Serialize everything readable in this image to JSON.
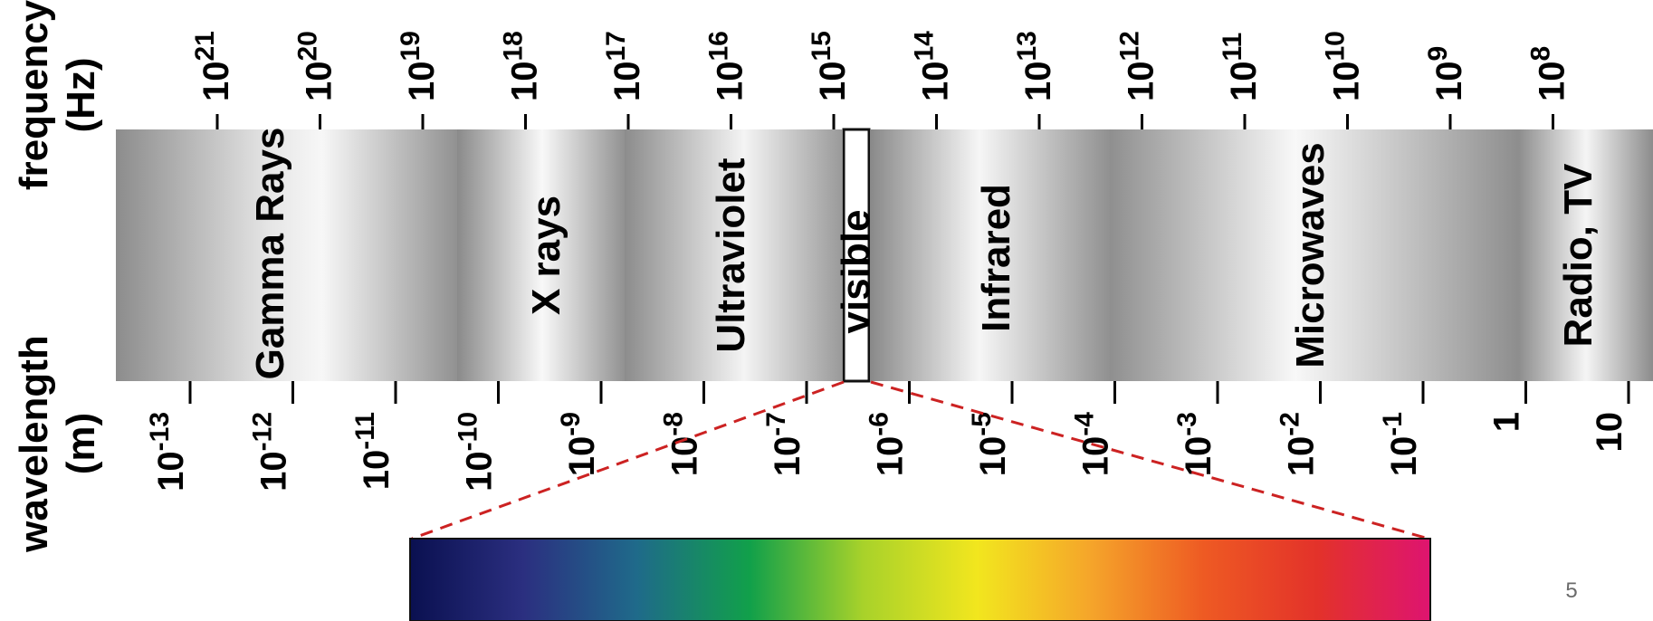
{
  "frequency_axis": {
    "title": "frequency",
    "unit": "(Hz)",
    "base": "10",
    "exponents": [
      "21",
      "20",
      "19",
      "18",
      "17",
      "16",
      "15",
      "14",
      "13",
      "12",
      "11",
      "10",
      "9",
      "8"
    ]
  },
  "wavelength_axis": {
    "title": "wavelength",
    "unit": "(m)",
    "labels": [
      {
        "base": "10",
        "exp": "-13"
      },
      {
        "base": "10",
        "exp": "-12"
      },
      {
        "base": "10",
        "exp": "-11"
      },
      {
        "base": "10",
        "exp": "-10"
      },
      {
        "base": "10",
        "exp": "-9"
      },
      {
        "base": "10",
        "exp": "-8"
      },
      {
        "base": "10",
        "exp": "-7"
      },
      {
        "base": "10",
        "exp": "-6"
      },
      {
        "base": "10",
        "exp": "-5"
      },
      {
        "base": "10",
        "exp": "-4"
      },
      {
        "base": "10",
        "exp": "-3"
      },
      {
        "base": "10",
        "exp": "-2"
      },
      {
        "base": "10",
        "exp": "-1"
      },
      {
        "base": "1",
        "exp": ""
      },
      {
        "base": "10",
        "exp": ""
      }
    ]
  },
  "bands": [
    {
      "id": "gamma",
      "label": "Gamma Rays"
    },
    {
      "id": "xray",
      "label": "X rays"
    },
    {
      "id": "uv",
      "label": "Ultraviolet"
    },
    {
      "id": "visible",
      "label": "visible"
    },
    {
      "id": "ir",
      "label": "Infrared"
    },
    {
      "id": "micro",
      "label": "Microwaves"
    },
    {
      "id": "radio",
      "label": "Radio, TV"
    }
  ],
  "colors": {
    "zoom_line": "#cc2222",
    "visible_spectrum": [
      "#0a1050",
      "#2b2f80",
      "#1f6a8a",
      "#11a04a",
      "#a8d22a",
      "#f2e61e",
      "#f5a52a",
      "#ee5a23",
      "#e3322a",
      "#de1470"
    ]
  },
  "page_number": "5"
}
